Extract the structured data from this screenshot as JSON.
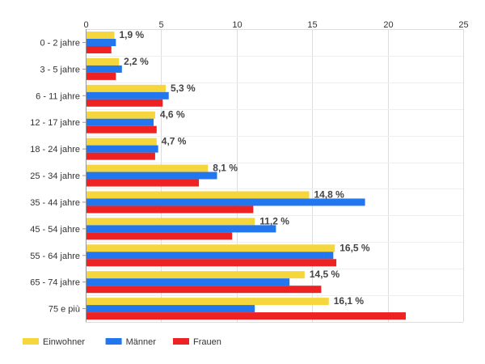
{
  "chart_data": {
    "type": "bar",
    "orientation": "horizontal",
    "categories": [
      "0 - 2 jahre",
      "3 - 5 jahre",
      "6 - 11 jahre",
      "12 - 17 jahre",
      "18 - 24 jahre",
      "25 - 34 jahre",
      "35 - 44 jahre",
      "45 - 54 jahre",
      "55 - 64 jahre",
      "65 - 74 jahre",
      "75 e più"
    ],
    "series": [
      {
        "name": "Einwohner",
        "color": "#f5d63d",
        "values": [
          1.9,
          2.2,
          5.3,
          4.6,
          4.7,
          8.1,
          14.8,
          11.2,
          16.5,
          14.5,
          16.1
        ]
      },
      {
        "name": "Männer",
        "color": "#2277ee",
        "values": [
          2.0,
          2.4,
          5.5,
          4.5,
          4.8,
          8.7,
          18.5,
          12.6,
          16.4,
          13.5,
          11.2
        ]
      },
      {
        "name": "Frauen",
        "color": "#ee2222",
        "values": [
          1.7,
          2.0,
          5.1,
          4.7,
          4.6,
          7.5,
          11.1,
          9.7,
          16.6,
          15.6,
          21.2
        ]
      }
    ],
    "data_labels": [
      "1,9 %",
      "2,2 %",
      "5,3 %",
      "4,6 %",
      "4,7 %",
      "8,1 %",
      "14,8 %",
      "11,2 %",
      "16,5 %",
      "14,5 %",
      "16,1 %"
    ],
    "x_ticks": [
      0,
      5,
      10,
      15,
      20,
      25
    ],
    "xlim": [
      0,
      25
    ],
    "legend_position": "bottom-left",
    "grid": true
  }
}
